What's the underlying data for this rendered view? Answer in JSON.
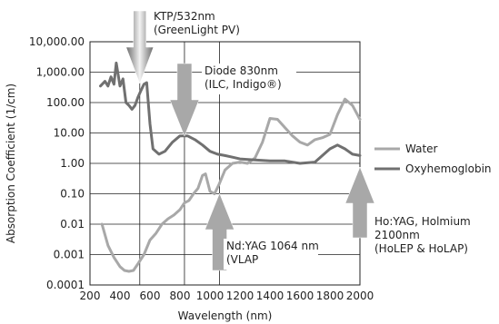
{
  "chart_data": {
    "type": "line",
    "xlabel": "Wavelength (nm)",
    "ylabel": "Absorption Coefficient (1/cm)",
    "xlim": [
      200,
      2000
    ],
    "ylim": [
      0.0001,
      10000
    ],
    "yscale": "log",
    "x_ticks": [
      "200",
      "400",
      "600",
      "800",
      "1000",
      "1200",
      "1400",
      "1600",
      "1800",
      "2000"
    ],
    "y_ticks": [
      "0.0001",
      "0.001",
      "0.01",
      "0.10",
      "1.00",
      "10.00",
      "100.00",
      "1,000.00",
      "10,000.00"
    ],
    "legend_position": "right",
    "series": [
      {
        "name": "Water",
        "color": "#a8a8a8",
        "points": [
          [
            280,
            0.01
          ],
          [
            320,
            0.002
          ],
          [
            360,
            0.0008
          ],
          [
            400,
            0.0004
          ],
          [
            430,
            0.0003
          ],
          [
            460,
            0.00028
          ],
          [
            490,
            0.0003
          ],
          [
            520,
            0.0005
          ],
          [
            560,
            0.001
          ],
          [
            600,
            0.003
          ],
          [
            640,
            0.005
          ],
          [
            680,
            0.01
          ],
          [
            720,
            0.015
          ],
          [
            760,
            0.02
          ],
          [
            800,
            0.03
          ],
          [
            830,
            0.05
          ],
          [
            860,
            0.06
          ],
          [
            890,
            0.1
          ],
          [
            920,
            0.15
          ],
          [
            950,
            0.4
          ],
          [
            970,
            0.45
          ],
          [
            1000,
            0.12
          ],
          [
            1030,
            0.1
          ],
          [
            1060,
            0.2
          ],
          [
            1100,
            0.6
          ],
          [
            1150,
            1.0
          ],
          [
            1200,
            1.1
          ],
          [
            1250,
            1.0
          ],
          [
            1300,
            1.5
          ],
          [
            1350,
            5
          ],
          [
            1400,
            30
          ],
          [
            1450,
            28
          ],
          [
            1500,
            15
          ],
          [
            1550,
            8
          ],
          [
            1600,
            5
          ],
          [
            1650,
            4
          ],
          [
            1700,
            6
          ],
          [
            1750,
            7
          ],
          [
            1800,
            9
          ],
          [
            1850,
            40
          ],
          [
            1900,
            130
          ],
          [
            1950,
            80
          ],
          [
            2000,
            28
          ]
        ]
      },
      {
        "name": "Oxyhemoglobin",
        "color": "#707070",
        "points": [
          [
            270,
            350
          ],
          [
            300,
            500
          ],
          [
            320,
            350
          ],
          [
            340,
            700
          ],
          [
            360,
            400
          ],
          [
            375,
            2000
          ],
          [
            400,
            350
          ],
          [
            420,
            600
          ],
          [
            440,
            100
          ],
          [
            460,
            80
          ],
          [
            480,
            60
          ],
          [
            500,
            80
          ],
          [
            520,
            150
          ],
          [
            540,
            250
          ],
          [
            560,
            400
          ],
          [
            578,
            450
          ],
          [
            600,
            20
          ],
          [
            620,
            3
          ],
          [
            660,
            2
          ],
          [
            700,
            2.5
          ],
          [
            750,
            5
          ],
          [
            800,
            8
          ],
          [
            850,
            8
          ],
          [
            900,
            6
          ],
          [
            950,
            4
          ],
          [
            1000,
            2.5
          ],
          [
            1050,
            2
          ],
          [
            1100,
            1.8
          ],
          [
            1150,
            1.6
          ],
          [
            1200,
            1.4
          ],
          [
            1300,
            1.3
          ],
          [
            1400,
            1.2
          ],
          [
            1500,
            1.2
          ],
          [
            1600,
            1.0
          ],
          [
            1700,
            1.1
          ],
          [
            1800,
            3
          ],
          [
            1850,
            4
          ],
          [
            1900,
            3
          ],
          [
            1950,
            2
          ],
          [
            2000,
            1.8
          ]
        ]
      }
    ],
    "annotations": [
      {
        "label_lines": [
          "KTP/532nm",
          "(GreenLight PV)"
        ],
        "wavelength": 532,
        "style": "arrow-down"
      },
      {
        "label_lines": [
          "Diode 830nm",
          "(ILC, Indigo®)"
        ],
        "wavelength": 830,
        "style": "arrow-down"
      },
      {
        "label_lines": [
          "Nd:YAG 1064 nm",
          "(VLAP"
        ],
        "wavelength": 1064,
        "style": "arrow-up"
      },
      {
        "label_lines": [
          "Ho:YAG, Holmium",
          "2100nm",
          "(HoLEP & HoLAP)"
        ],
        "wavelength": 2100,
        "style": "arrow-up"
      }
    ]
  }
}
